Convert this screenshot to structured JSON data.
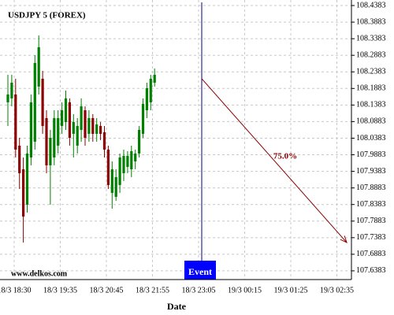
{
  "chart_data": {
    "type": "candlestick",
    "title": "USDJPY 5 (FOREX)",
    "source": "www.delkos.com",
    "x_label": "Date",
    "xticks": [
      "18/3 18:30",
      "18/3 19:35",
      "18/3 20:45",
      "18/3 21:55",
      "18/3 23:05",
      "19/3 00:15",
      "19/3 01:25",
      "19/3 02:35"
    ],
    "ylim": [
      107.612,
      108.455
    ],
    "yticks": [
      108.4383,
      108.3883,
      108.3383,
      108.2883,
      108.2383,
      108.1883,
      108.1383,
      108.0883,
      108.0383,
      107.9883,
      107.9383,
      107.8883,
      107.8383,
      107.7883,
      107.7383,
      107.6883,
      107.6383
    ],
    "grid": true,
    "up_color": "#008000",
    "down_color": "#8b0000",
    "open": [
      108.1464,
      108.1582,
      108.1701,
      108.0158,
      107.9446,
      107.8378,
      107.9802,
      108.0277,
      108.1939,
      108.2176,
      108.0989,
      107.9565,
      107.9802,
      108.0158,
      108.0752,
      108.087,
      108.1464,
      108.0514,
      108.0158,
      108.0633,
      108.1226,
      108.0514,
      108.0989,
      108.0514,
      108.0752,
      108.0562,
      108.0039,
      107.8734,
      107.8615,
      107.8971,
      107.9327,
      107.9517,
      107.9446,
      107.9683,
      107.9921,
      108.0514,
      108.1226,
      108.1464,
      108.2057
    ],
    "high": [
      108.2295,
      108.2295,
      108.2176,
      108.0395,
      107.9802,
      108.0158,
      108.1701,
      108.2888,
      108.3482,
      108.2413,
      108.1226,
      108.0633,
      108.1226,
      108.1226,
      108.1464,
      108.182,
      108.1582,
      108.1108,
      108.0989,
      108.1582,
      108.1345,
      108.1226,
      108.1108,
      108.0989,
      108.087,
      108.0752,
      108.0158,
      107.9683,
      107.9446,
      107.9921,
      108.0039,
      107.9992,
      108.0158,
      108.0039,
      108.0752,
      108.1582,
      108.2057,
      108.2295,
      108.2485
    ],
    "low": [
      108.0752,
      108.1345,
      107.9802,
      107.8852,
      107.7238,
      107.814,
      107.9565,
      108.0039,
      108.1701,
      108.0514,
      107.9327,
      107.8378,
      107.9565,
      107.9921,
      108.0514,
      108.0633,
      108.0158,
      107.9802,
      107.9921,
      108.0277,
      108.0158,
      108.0277,
      108.0277,
      108.0277,
      108.0324,
      107.9802,
      107.8852,
      107.8259,
      107.8496,
      107.8734,
      107.909,
      107.9327,
      107.9208,
      107.9446,
      107.9802,
      108.0395,
      108.0989,
      108.1226,
      108.1939
    ],
    "close": [
      108.1701,
      108.2057,
      108.0039,
      107.9327,
      107.8021,
      107.9921,
      108.1464,
      108.2651,
      108.3126,
      108.0752,
      107.9565,
      108.0395,
      108.0989,
      108.0989,
      108.1226,
      108.1582,
      108.0395,
      108.087,
      108.0752,
      108.1345,
      108.0395,
      108.0989,
      108.0514,
      108.0799,
      108.0514,
      108.0039,
      107.8971,
      107.9446,
      107.9208,
      107.9802,
      107.9849,
      107.9849,
      107.9992,
      107.9921,
      108.0633,
      108.1416,
      108.1891,
      108.2176,
      108.2295
    ],
    "event": {
      "label": "Event",
      "arrow_from": 108.2176,
      "arrow_to": 107.7238,
      "arrow_label": "75.0%"
    }
  }
}
